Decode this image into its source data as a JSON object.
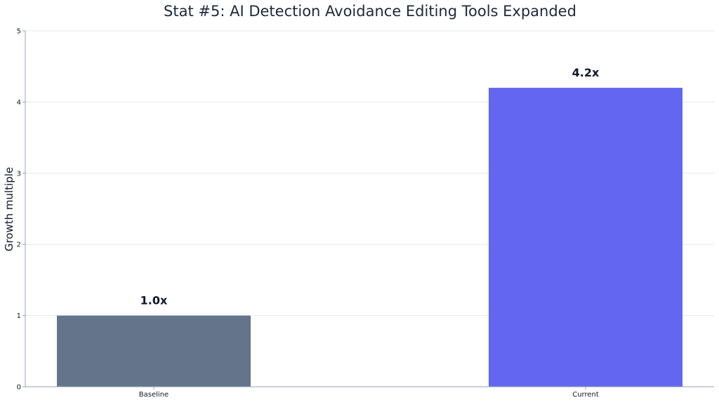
{
  "chart_data": {
    "type": "bar",
    "title": "Stat #5: AI Detection Avoidance Editing Tools Expanded",
    "xlabel": "",
    "ylabel": "Growth multiple",
    "categories": [
      "Baseline",
      "Current"
    ],
    "values": [
      1.0,
      4.2
    ],
    "data_labels": [
      "1.0x",
      "4.2x"
    ],
    "bar_colors": [
      "#64748b",
      "#6366f1"
    ],
    "ylim": [
      0,
      5
    ],
    "yticks": [
      0,
      1,
      2,
      3,
      4,
      5
    ],
    "grid": "horizontal",
    "colors": {
      "title": "#1e293b",
      "label": "#0f172a",
      "axis": "#94a3b8",
      "grid": "#e5e7eb",
      "tick_text": "#111827"
    }
  }
}
